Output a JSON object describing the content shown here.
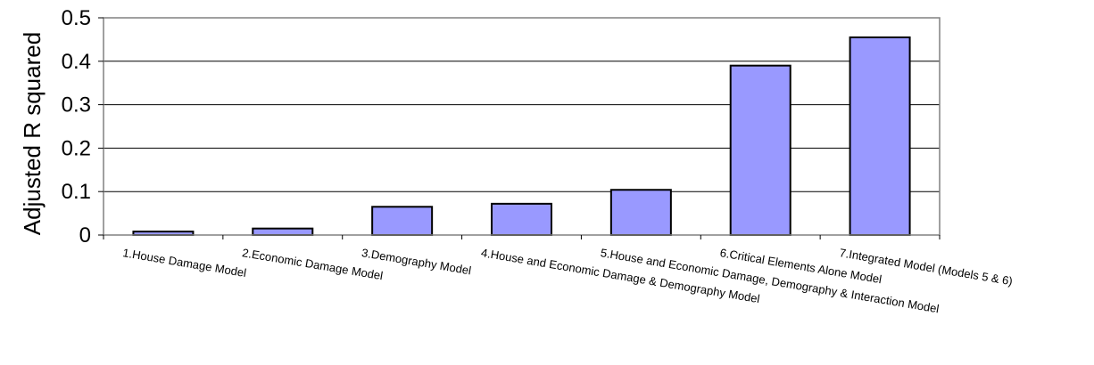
{
  "chart_data": {
    "type": "bar",
    "title": "",
    "xlabel": "",
    "ylabel": "Adjusted R squared",
    "ylim": [
      0,
      0.5
    ],
    "yticks": [
      "0",
      "0.1",
      "0.2",
      "0.3",
      "0.4",
      "0.5"
    ],
    "grid": true,
    "legend": "none",
    "categories": [
      "1.House Damage Model",
      "2.Economic Damage Model",
      "3.Demography Model",
      "4.House and Economic Damage & Demography Model",
      "5.House and Economic Damage, Demography & Interaction Model",
      "6.Critical Elements Alone Model",
      "7.Integrated Model (Models 5 & 6)"
    ],
    "values": [
      0.008,
      0.015,
      0.065,
      0.072,
      0.104,
      0.39,
      0.455
    ],
    "bar_color": "#9999FF",
    "bar_edge_color": "#000000"
  }
}
